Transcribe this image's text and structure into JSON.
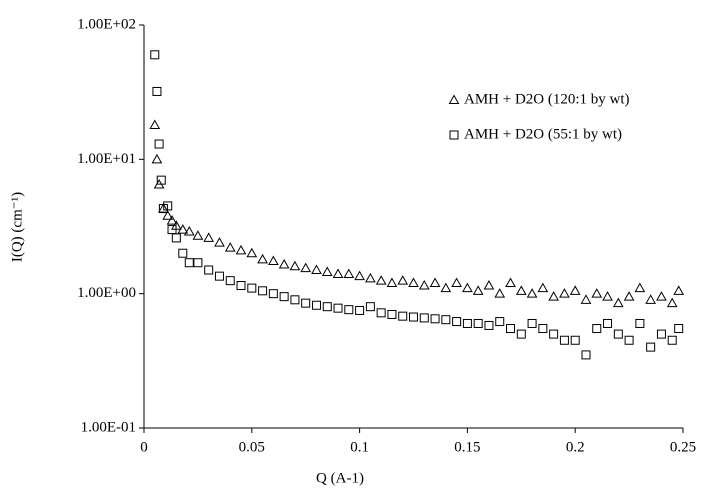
{
  "chart_data": {
    "type": "scatter",
    "y_label": "I(Q) (cm⁻¹)",
    "x_label": "Q (A-1)",
    "xlim": [
      0,
      0.25
    ],
    "xticks": [
      0,
      0.05,
      0.1,
      0.15,
      0.2,
      0.25
    ],
    "ylim": [
      0.1,
      100
    ],
    "log_y": true,
    "yticks": [
      {
        "value": 0.1,
        "label": "1.00E-01"
      },
      {
        "value": 1,
        "label": "1.00E+00"
      },
      {
        "value": 10,
        "label": "1.00E+01"
      },
      {
        "value": 100,
        "label": "1.00E+02"
      }
    ],
    "legend": "upper right",
    "series": [
      {
        "name": "AMH + D2O (120:1 by wt)",
        "color": "#000000",
        "marker": "triangle",
        "x": [
          0.005,
          0.006,
          0.007,
          0.009,
          0.011,
          0.013,
          0.015,
          0.018,
          0.021,
          0.025,
          0.03,
          0.035,
          0.04,
          0.045,
          0.05,
          0.055,
          0.06,
          0.065,
          0.07,
          0.075,
          0.08,
          0.085,
          0.09,
          0.095,
          0.1,
          0.105,
          0.11,
          0.115,
          0.12,
          0.125,
          0.13,
          0.135,
          0.14,
          0.145,
          0.15,
          0.155,
          0.16,
          0.165,
          0.17,
          0.175,
          0.18,
          0.185,
          0.19,
          0.195,
          0.2,
          0.205,
          0.21,
          0.215,
          0.22,
          0.225,
          0.23,
          0.235,
          0.24,
          0.245,
          0.248
        ],
        "values": [
          18,
          10,
          6.5,
          4.3,
          3.8,
          3.5,
          3.2,
          3.0,
          2.9,
          2.7,
          2.6,
          2.4,
          2.2,
          2.1,
          2.0,
          1.8,
          1.75,
          1.65,
          1.6,
          1.55,
          1.5,
          1.45,
          1.4,
          1.4,
          1.35,
          1.3,
          1.25,
          1.2,
          1.25,
          1.2,
          1.15,
          1.2,
          1.1,
          1.2,
          1.1,
          1.05,
          1.15,
          1.0,
          1.2,
          1.05,
          1.0,
          1.1,
          0.95,
          1.0,
          1.05,
          0.9,
          1.0,
          0.95,
          0.85,
          0.95,
          1.1,
          0.9,
          0.95,
          0.85,
          1.05
        ]
      },
      {
        "name": "AMH + D2O (55:1 by wt)",
        "color": "#000000",
        "marker": "square",
        "x": [
          0.005,
          0.006,
          0.007,
          0.008,
          0.009,
          0.011,
          0.013,
          0.015,
          0.018,
          0.021,
          0.025,
          0.03,
          0.035,
          0.04,
          0.045,
          0.05,
          0.055,
          0.06,
          0.065,
          0.07,
          0.075,
          0.08,
          0.085,
          0.09,
          0.095,
          0.1,
          0.105,
          0.11,
          0.115,
          0.12,
          0.125,
          0.13,
          0.135,
          0.14,
          0.145,
          0.15,
          0.155,
          0.16,
          0.165,
          0.17,
          0.175,
          0.18,
          0.185,
          0.19,
          0.195,
          0.2,
          0.205,
          0.21,
          0.215,
          0.22,
          0.225,
          0.23,
          0.235,
          0.24,
          0.245,
          0.248
        ],
        "values": [
          60,
          32,
          13,
          7,
          4.3,
          4.5,
          3.0,
          2.6,
          2.0,
          1.7,
          1.7,
          1.5,
          1.35,
          1.25,
          1.15,
          1.1,
          1.05,
          1.0,
          0.95,
          0.9,
          0.85,
          0.82,
          0.8,
          0.78,
          0.76,
          0.75,
          0.8,
          0.72,
          0.7,
          0.68,
          0.67,
          0.66,
          0.65,
          0.64,
          0.62,
          0.6,
          0.6,
          0.58,
          0.62,
          0.55,
          0.5,
          0.6,
          0.55,
          0.5,
          0.45,
          0.45,
          0.35,
          0.55,
          0.6,
          0.5,
          0.45,
          0.6,
          0.4,
          0.5,
          0.45,
          0.55
        ]
      }
    ]
  }
}
